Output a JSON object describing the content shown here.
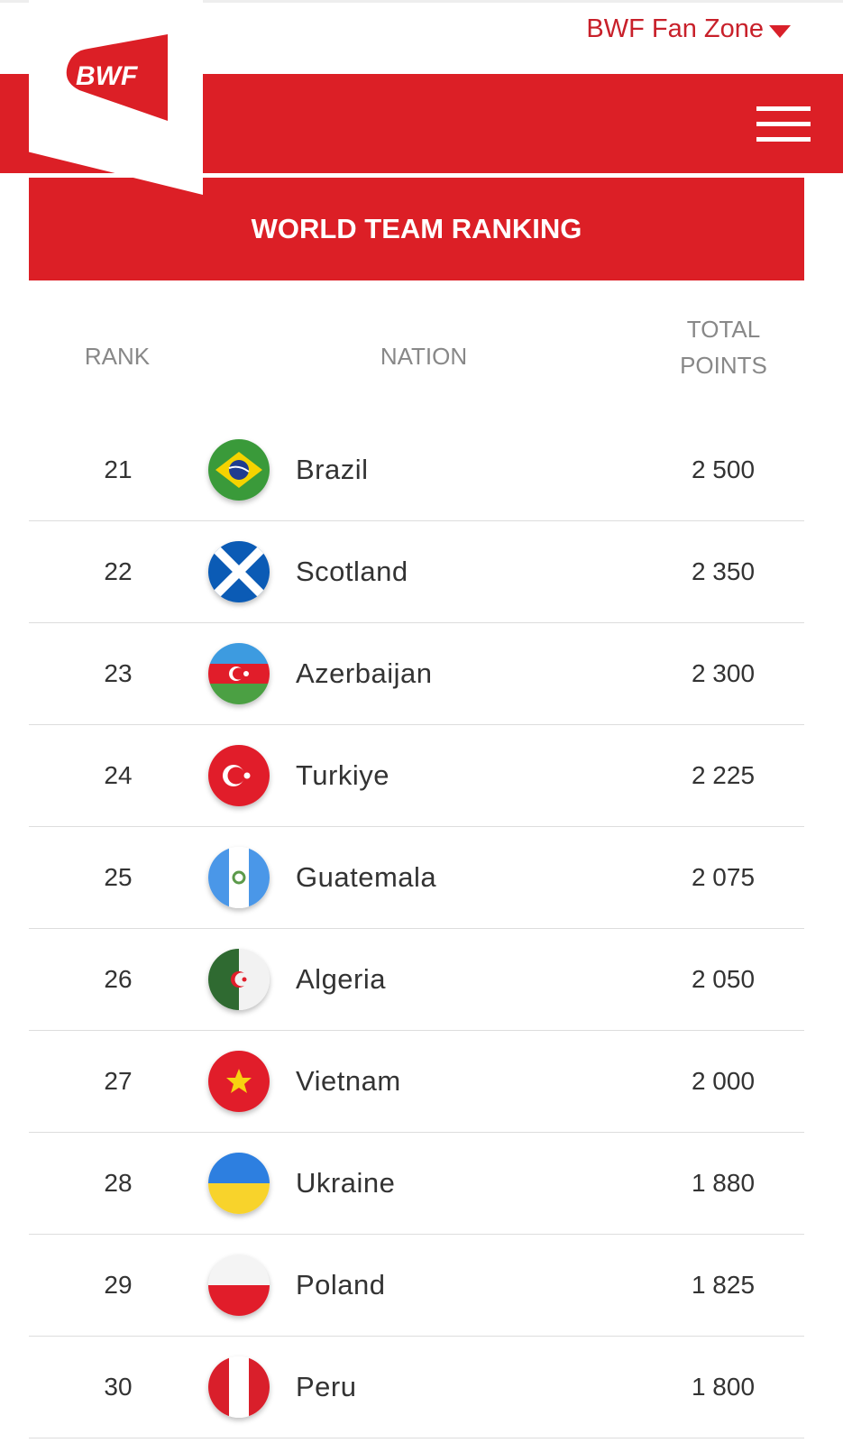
{
  "header": {
    "fan_zone": "BWF Fan Zone",
    "logo_text": "BWF",
    "brand_color": "#dc1f26"
  },
  "title": "WORLD TEAM RANKING",
  "columns": {
    "rank": "RANK",
    "nation": "NATION",
    "points_line1": "TOTAL",
    "points_line2": "POINTS"
  },
  "rows": [
    {
      "rank": "21",
      "nation": "Brazil",
      "points": "2 500",
      "flag": "brazil"
    },
    {
      "rank": "22",
      "nation": "Scotland",
      "points": "2 350",
      "flag": "scotland"
    },
    {
      "rank": "23",
      "nation": "Azerbaijan",
      "points": "2 300",
      "flag": "azerbaijan"
    },
    {
      "rank": "24",
      "nation": "Turkiye",
      "points": "2 225",
      "flag": "turkiye"
    },
    {
      "rank": "25",
      "nation": "Guatemala",
      "points": "2 075",
      "flag": "guatemala"
    },
    {
      "rank": "26",
      "nation": "Algeria",
      "points": "2 050",
      "flag": "algeria"
    },
    {
      "rank": "27",
      "nation": "Vietnam",
      "points": "2 000",
      "flag": "vietnam"
    },
    {
      "rank": "28",
      "nation": "Ukraine",
      "points": "1 880",
      "flag": "ukraine"
    },
    {
      "rank": "29",
      "nation": "Poland",
      "points": "1 825",
      "flag": "poland"
    },
    {
      "rank": "30",
      "nation": "Peru",
      "points": "1 800",
      "flag": "peru"
    }
  ]
}
